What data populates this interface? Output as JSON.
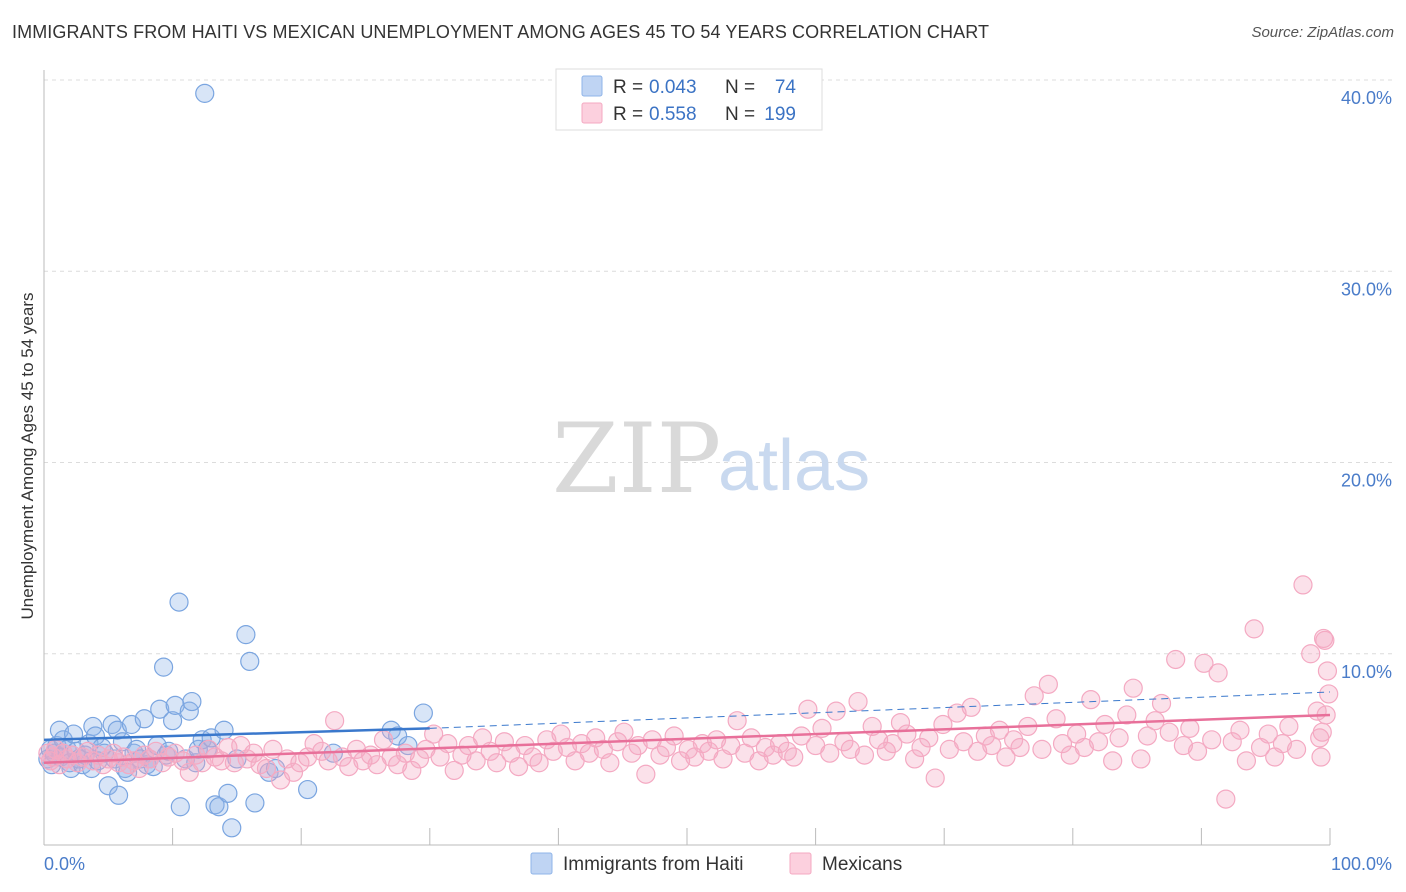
{
  "title": "IMMIGRANTS FROM HAITI VS MEXICAN UNEMPLOYMENT AMONG AGES 45 TO 54 YEARS CORRELATION CHART",
  "source": "Source: ZipAtlas.com",
  "watermark": {
    "zip": "ZIP",
    "atlas": "atlas"
  },
  "colors": {
    "haiti": "#8fb4e8",
    "haiti_line": "#3a78cc",
    "mexicans": "#f4a9c2",
    "mexicans_line": "#e8709a",
    "tick": "#4a7cc9"
  },
  "legend": {
    "rows": [
      {
        "r_label": "R =",
        "r_value": "0.043",
        "n_label": "N =",
        "n_value": "74"
      },
      {
        "r_label": "R =",
        "r_value": "0.558",
        "n_label": "N =",
        "n_value": "199"
      }
    ]
  },
  "chart_data": {
    "type": "scatter",
    "ylabel": "Unemployment Among Ages 45 to 54 years",
    "xlim": [
      0,
      100
    ],
    "ylim": [
      0,
      41
    ],
    "y_ticks": [
      {
        "value": 10,
        "label": "10.0%"
      },
      {
        "value": 20,
        "label": "20.0%"
      },
      {
        "value": 30,
        "label": "30.0%"
      },
      {
        "value": 40,
        "label": "40.0%"
      }
    ],
    "x_ticks": [
      {
        "value": 0,
        "label": "0.0%"
      },
      {
        "value": 100,
        "label": "100.0%"
      }
    ],
    "grid": true,
    "legend_position": "top-center",
    "series": [
      {
        "name": "Immigrants from Haiti",
        "trend": {
          "x": [
            0,
            30
          ],
          "y": [
            5.5,
            6.1
          ],
          "dashed_extension": {
            "x": [
              30,
              100
            ],
            "y": [
              6.1,
              8.0
            ]
          }
        },
        "points": [
          [
            0.3,
            4.5
          ],
          [
            0.5,
            5.0
          ],
          [
            0.6,
            4.2
          ],
          [
            0.8,
            4.8
          ],
          [
            1.0,
            5.2
          ],
          [
            1.2,
            6.0
          ],
          [
            1.3,
            4.6
          ],
          [
            1.5,
            5.5
          ],
          [
            1.8,
            5.0
          ],
          [
            2.0,
            4.3
          ],
          [
            2.1,
            4.0
          ],
          [
            2.3,
            5.8
          ],
          [
            2.5,
            4.9
          ],
          [
            2.7,
            4.5
          ],
          [
            3.0,
            4.2
          ],
          [
            3.2,
            4.7
          ],
          [
            3.5,
            5.3
          ],
          [
            3.7,
            4.0
          ],
          [
            3.8,
            6.2
          ],
          [
            4.0,
            5.7
          ],
          [
            4.2,
            4.4
          ],
          [
            4.5,
            5.1
          ],
          [
            4.7,
            4.8
          ],
          [
            5.0,
            3.1
          ],
          [
            5.3,
            6.3
          ],
          [
            5.5,
            4.5
          ],
          [
            5.7,
            6.0
          ],
          [
            5.8,
            2.6
          ],
          [
            6.1,
            5.4
          ],
          [
            6.3,
            4.0
          ],
          [
            6.5,
            3.8
          ],
          [
            6.8,
            6.3
          ],
          [
            7.0,
            4.8
          ],
          [
            7.2,
            5.0
          ],
          [
            7.5,
            4.5
          ],
          [
            7.8,
            6.6
          ],
          [
            8.0,
            4.2
          ],
          [
            8.2,
            4.5
          ],
          [
            8.5,
            4.1
          ],
          [
            8.8,
            5.2
          ],
          [
            9.0,
            7.1
          ],
          [
            9.3,
            9.3
          ],
          [
            9.5,
            4.7
          ],
          [
            9.7,
            4.9
          ],
          [
            10.0,
            6.5
          ],
          [
            10.2,
            7.3
          ],
          [
            10.5,
            12.7
          ],
          [
            10.6,
            2.0
          ],
          [
            11.0,
            4.5
          ],
          [
            11.3,
            7.0
          ],
          [
            11.5,
            7.5
          ],
          [
            11.8,
            4.3
          ],
          [
            12.0,
            5.0
          ],
          [
            12.3,
            5.5
          ],
          [
            12.5,
            39.3
          ],
          [
            12.7,
            5.0
          ],
          [
            13.0,
            5.6
          ],
          [
            13.3,
            2.1
          ],
          [
            13.6,
            2.0
          ],
          [
            14.0,
            6.0
          ],
          [
            14.3,
            2.7
          ],
          [
            14.6,
            0.9
          ],
          [
            15.0,
            4.5
          ],
          [
            15.7,
            11.0
          ],
          [
            16.0,
            9.6
          ],
          [
            16.4,
            2.2
          ],
          [
            17.5,
            3.8
          ],
          [
            18.0,
            4.0
          ],
          [
            20.5,
            2.9
          ],
          [
            22.5,
            4.8
          ],
          [
            27.0,
            6.0
          ],
          [
            27.5,
            5.7
          ],
          [
            28.3,
            5.2
          ],
          [
            29.5,
            6.9
          ]
        ]
      },
      {
        "name": "Mexicans",
        "trend": {
          "x": [
            0,
            100
          ],
          "y": [
            4.3,
            6.8
          ]
        },
        "points": [
          [
            0.3,
            4.8
          ],
          [
            0.5,
            4.4
          ],
          [
            0.7,
            4.6
          ],
          [
            0.9,
            5.0
          ],
          [
            1.2,
            4.2
          ],
          [
            1.5,
            4.8
          ],
          [
            1.8,
            4.5
          ],
          [
            2.2,
            4.7
          ],
          [
            2.6,
            4.3
          ],
          [
            3.0,
            4.6
          ],
          [
            3.4,
            4.9
          ],
          [
            3.8,
            4.4
          ],
          [
            4.2,
            4.7
          ],
          [
            4.6,
            4.2
          ],
          [
            5.0,
            4.5
          ],
          [
            5.4,
            4.8
          ],
          [
            5.8,
            4.3
          ],
          [
            6.2,
            4.6
          ],
          [
            6.6,
            4.2
          ],
          [
            7.0,
            4.4
          ],
          [
            7.4,
            4.0
          ],
          [
            7.8,
            4.7
          ],
          [
            8.2,
            4.5
          ],
          [
            8.7,
            4.9
          ],
          [
            9.2,
            4.3
          ],
          [
            9.7,
            4.6
          ],
          [
            10.2,
            4.8
          ],
          [
            10.8,
            4.4
          ],
          [
            11.3,
            3.8
          ],
          [
            11.8,
            4.7
          ],
          [
            12.3,
            4.3
          ],
          [
            12.8,
            5.0
          ],
          [
            13.3,
            4.6
          ],
          [
            13.8,
            4.4
          ],
          [
            14.3,
            5.1
          ],
          [
            14.8,
            4.3
          ],
          [
            15.3,
            5.2
          ],
          [
            15.8,
            4.5
          ],
          [
            16.3,
            4.8
          ],
          [
            16.8,
            4.2
          ],
          [
            17.3,
            4.0
          ],
          [
            17.8,
            5.0
          ],
          [
            18.4,
            3.4
          ],
          [
            18.9,
            4.5
          ],
          [
            19.4,
            3.8
          ],
          [
            19.9,
            4.3
          ],
          [
            20.5,
            4.6
          ],
          [
            21.0,
            5.3
          ],
          [
            21.6,
            4.9
          ],
          [
            22.1,
            4.4
          ],
          [
            22.6,
            6.5
          ],
          [
            23.2,
            4.6
          ],
          [
            23.7,
            4.1
          ],
          [
            24.3,
            5.0
          ],
          [
            24.8,
            4.4
          ],
          [
            25.4,
            4.7
          ],
          [
            25.9,
            4.2
          ],
          [
            26.4,
            5.5
          ],
          [
            27.0,
            4.6
          ],
          [
            27.5,
            4.2
          ],
          [
            28.1,
            4.8
          ],
          [
            28.6,
            3.9
          ],
          [
            29.2,
            4.5
          ],
          [
            29.7,
            5.0
          ],
          [
            30.3,
            5.8
          ],
          [
            30.8,
            4.6
          ],
          [
            31.4,
            5.3
          ],
          [
            31.9,
            3.9
          ],
          [
            32.5,
            4.7
          ],
          [
            33.0,
            5.2
          ],
          [
            33.6,
            4.4
          ],
          [
            34.1,
            5.6
          ],
          [
            34.7,
            4.9
          ],
          [
            35.2,
            4.3
          ],
          [
            35.8,
            5.4
          ],
          [
            36.3,
            4.8
          ],
          [
            36.9,
            4.1
          ],
          [
            37.4,
            5.2
          ],
          [
            38.0,
            4.6
          ],
          [
            38.5,
            4.3
          ],
          [
            39.1,
            5.5
          ],
          [
            39.6,
            4.9
          ],
          [
            40.2,
            5.8
          ],
          [
            40.7,
            5.1
          ],
          [
            41.3,
            4.4
          ],
          [
            41.8,
            5.3
          ],
          [
            42.4,
            4.8
          ],
          [
            42.9,
            5.6
          ],
          [
            43.5,
            5.0
          ],
          [
            44.0,
            4.3
          ],
          [
            44.6,
            5.4
          ],
          [
            45.1,
            5.9
          ],
          [
            45.7,
            4.8
          ],
          [
            46.2,
            5.2
          ],
          [
            46.8,
            3.7
          ],
          [
            47.3,
            5.5
          ],
          [
            47.9,
            4.7
          ],
          [
            48.4,
            5.1
          ],
          [
            49.0,
            5.7
          ],
          [
            49.5,
            4.4
          ],
          [
            50.1,
            5.0
          ],
          [
            50.6,
            4.6
          ],
          [
            51.2,
            5.3
          ],
          [
            51.7,
            4.9
          ],
          [
            52.3,
            5.5
          ],
          [
            52.8,
            4.5
          ],
          [
            53.4,
            5.2
          ],
          [
            53.9,
            6.5
          ],
          [
            54.5,
            4.8
          ],
          [
            55.0,
            5.6
          ],
          [
            55.6,
            4.4
          ],
          [
            56.1,
            5.1
          ],
          [
            56.7,
            4.7
          ],
          [
            57.2,
            5.3
          ],
          [
            57.8,
            4.9
          ],
          [
            58.3,
            4.6
          ],
          [
            58.9,
            5.7
          ],
          [
            59.4,
            7.1
          ],
          [
            60.0,
            5.2
          ],
          [
            60.5,
            6.1
          ],
          [
            61.1,
            4.8
          ],
          [
            61.6,
            7.0
          ],
          [
            62.2,
            5.4
          ],
          [
            62.7,
            5.0
          ],
          [
            63.3,
            7.5
          ],
          [
            63.8,
            4.7
          ],
          [
            64.4,
            6.2
          ],
          [
            64.9,
            5.5
          ],
          [
            65.5,
            4.9
          ],
          [
            66.0,
            5.3
          ],
          [
            66.6,
            6.4
          ],
          [
            67.1,
            5.8
          ],
          [
            67.7,
            4.5
          ],
          [
            68.2,
            5.1
          ],
          [
            68.8,
            5.6
          ],
          [
            69.3,
            3.5
          ],
          [
            69.9,
            6.3
          ],
          [
            70.4,
            5.0
          ],
          [
            71.0,
            6.9
          ],
          [
            71.5,
            5.4
          ],
          [
            72.1,
            7.2
          ],
          [
            72.6,
            4.9
          ],
          [
            73.2,
            5.7
          ],
          [
            73.7,
            5.2
          ],
          [
            74.3,
            6.0
          ],
          [
            74.8,
            4.6
          ],
          [
            75.4,
            5.5
          ],
          [
            75.9,
            5.1
          ],
          [
            76.5,
            6.2
          ],
          [
            77.0,
            7.8
          ],
          [
            77.6,
            5.0
          ],
          [
            78.1,
            8.4
          ],
          [
            78.7,
            6.6
          ],
          [
            79.2,
            5.3
          ],
          [
            79.8,
            4.7
          ],
          [
            80.3,
            5.8
          ],
          [
            80.9,
            5.1
          ],
          [
            81.4,
            7.6
          ],
          [
            82.0,
            5.4
          ],
          [
            82.5,
            6.3
          ],
          [
            83.1,
            4.4
          ],
          [
            83.6,
            5.6
          ],
          [
            84.2,
            6.8
          ],
          [
            84.7,
            8.2
          ],
          [
            85.3,
            4.5
          ],
          [
            85.8,
            5.7
          ],
          [
            86.4,
            6.5
          ],
          [
            86.9,
            7.4
          ],
          [
            87.5,
            5.9
          ],
          [
            88.0,
            9.7
          ],
          [
            88.6,
            5.2
          ],
          [
            89.1,
            6.1
          ],
          [
            89.7,
            4.9
          ],
          [
            90.2,
            9.5
          ],
          [
            90.8,
            5.5
          ],
          [
            91.3,
            9.0
          ],
          [
            91.9,
            2.4
          ],
          [
            92.4,
            5.4
          ],
          [
            93.0,
            6.0
          ],
          [
            93.5,
            4.4
          ],
          [
            94.1,
            11.3
          ],
          [
            94.6,
            5.1
          ],
          [
            95.2,
            5.8
          ],
          [
            95.7,
            4.6
          ],
          [
            96.3,
            5.3
          ],
          [
            96.8,
            6.2
          ],
          [
            97.4,
            5.0
          ],
          [
            97.9,
            13.6
          ],
          [
            98.5,
            10.0
          ],
          [
            99.0,
            7.0
          ],
          [
            99.3,
            4.6
          ],
          [
            99.5,
            10.8
          ],
          [
            99.7,
            6.8
          ],
          [
            99.8,
            9.1
          ],
          [
            99.9,
            7.9
          ],
          [
            99.6,
            10.7
          ],
          [
            99.4,
            5.9
          ],
          [
            99.2,
            5.6
          ]
        ]
      }
    ]
  },
  "bottom_legend": [
    {
      "label": "Immigrants from Haiti"
    },
    {
      "label": "Mexicans"
    }
  ]
}
